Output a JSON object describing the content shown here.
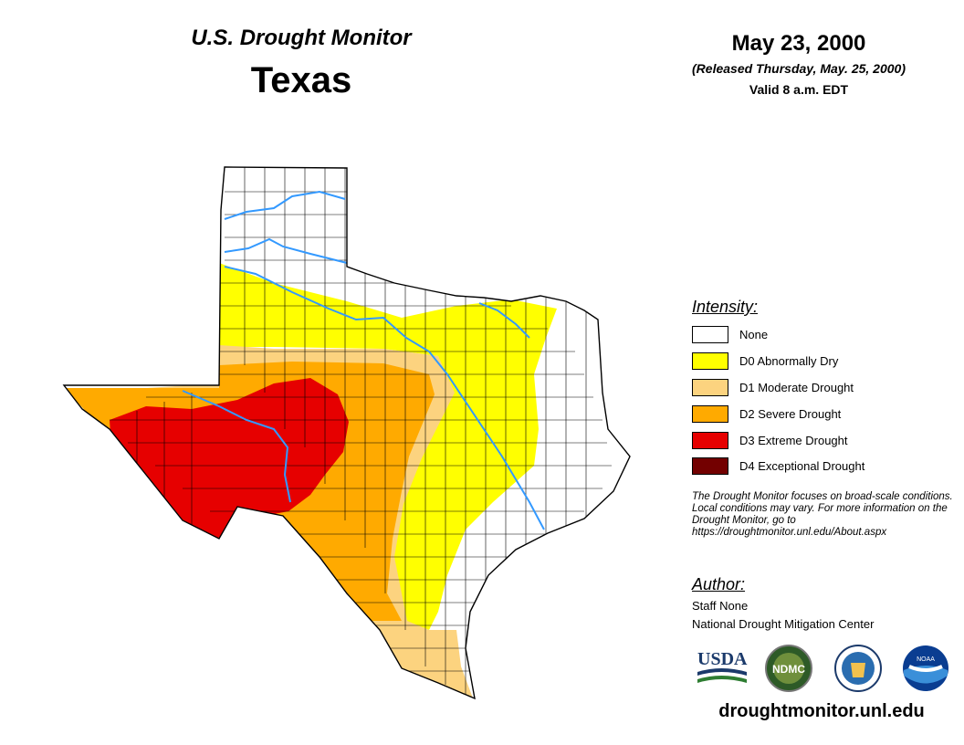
{
  "header": {
    "monitor_title": "U.S. Drought Monitor",
    "state": "Texas",
    "date": "May 23, 2000",
    "released": "(Released Thursday, May. 25, 2000)",
    "valid": "Valid 8 a.m. EDT"
  },
  "legend": {
    "title": "Intensity:",
    "items": [
      {
        "label": "None",
        "color": "#ffffff"
      },
      {
        "label": "D0 Abnormally Dry",
        "color": "#ffff00"
      },
      {
        "label": "D1 Moderate Drought",
        "color": "#fcd37f"
      },
      {
        "label": "D2 Severe Drought",
        "color": "#ffaa00"
      },
      {
        "label": "D3 Extreme Drought",
        "color": "#e60000"
      },
      {
        "label": "D4 Exceptional Drought",
        "color": "#730000"
      }
    ]
  },
  "note": "The Drought Monitor focuses on broad-scale conditions. Local conditions may vary. For more information on the Drought Monitor, go to https://droughtmonitor.unl.edu/About.aspx",
  "author": {
    "title": "Author:",
    "name": "Staff None",
    "organization": "National Drought Mitigation Center"
  },
  "logos": {
    "usda": "USDA",
    "ndmc": "NDMC",
    "noaa": "NOAA"
  },
  "colors": {
    "river": "#3399ff",
    "county_lines": "#000000"
  },
  "footer": {
    "website": "droughtmonitor.unl.edu"
  }
}
